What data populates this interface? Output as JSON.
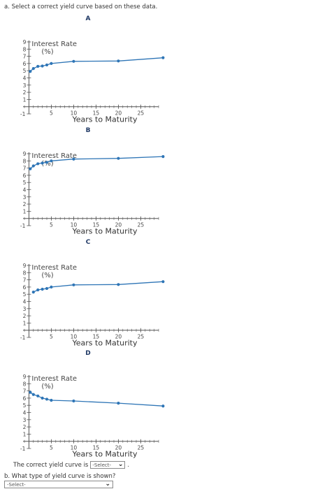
{
  "question_a": "a. Select a correct yield curve based on these data.",
  "question_b": "b. What type of yield curve is shown?",
  "answer_prefix": "The correct yield curve is",
  "answer_suffix": ".",
  "select_a": {
    "selected": "-Select-"
  },
  "select_b": {
    "selected": "-Select-"
  },
  "colors": {
    "series": "#2e75b6",
    "axis": "#555555",
    "title": "#1f3864"
  },
  "chart_data": [
    {
      "type": "line",
      "title": "A",
      "ylabel_line1": "Interest Rate",
      "ylabel_line2": "(%)",
      "xlabel": "Years to Maturity",
      "xlim": [
        -1,
        29
      ],
      "ylim": [
        -1,
        9
      ],
      "x_ticks": [
        5,
        10,
        15,
        20,
        25
      ],
      "y_ticks": [
        1,
        2,
        3,
        4,
        5,
        6,
        7,
        8,
        9
      ],
      "series": [
        {
          "x": [
            0.3,
            1,
            2,
            3,
            4,
            5,
            10,
            20,
            30
          ],
          "y": [
            4.9,
            5.3,
            5.6,
            5.65,
            5.8,
            6.0,
            6.3,
            6.35,
            6.8
          ]
        }
      ]
    },
    {
      "type": "line",
      "title": "B",
      "ylabel_line1": "Interest Rate",
      "ylabel_line2": "(%)",
      "xlabel": "Years to Maturity",
      "xlim": [
        -1,
        29
      ],
      "ylim": [
        -1,
        9
      ],
      "x_ticks": [
        5,
        10,
        15,
        20,
        25
      ],
      "y_ticks": [
        1,
        2,
        3,
        4,
        5,
        6,
        7,
        8,
        9
      ],
      "series": [
        {
          "x": [
            0.3,
            1,
            2,
            3,
            4,
            5,
            10,
            20,
            30
          ],
          "y": [
            6.9,
            7.3,
            7.6,
            7.7,
            7.8,
            8.0,
            8.25,
            8.35,
            8.6
          ]
        }
      ]
    },
    {
      "type": "line",
      "title": "C",
      "ylabel_line1": "Interest Rate",
      "ylabel_line2": "(%)",
      "xlabel": "Years to Maturity",
      "xlim": [
        -1,
        29
      ],
      "ylim": [
        -1,
        9
      ],
      "x_ticks": [
        5,
        10,
        15,
        20,
        25
      ],
      "y_ticks": [
        1,
        2,
        3,
        4,
        5,
        6,
        7,
        8,
        9
      ],
      "series": [
        {
          "x": [
            1,
            2,
            3,
            4,
            5,
            10,
            20,
            30
          ],
          "y": [
            5.3,
            5.6,
            5.7,
            5.8,
            6.0,
            6.3,
            6.35,
            6.75
          ]
        }
      ]
    },
    {
      "type": "line",
      "title": "D",
      "ylabel_line1": "Interest Rate",
      "ylabel_line2": "(%)",
      "xlabel": "Years to Maturity",
      "xlim": [
        -1,
        29
      ],
      "ylim": [
        -1,
        9
      ],
      "x_ticks": [
        5,
        10,
        15,
        20,
        25
      ],
      "y_ticks": [
        1,
        2,
        3,
        4,
        5,
        6,
        7,
        8,
        9
      ],
      "series": [
        {
          "x": [
            0.3,
            1,
            2,
            3,
            4,
            5,
            10,
            20,
            30
          ],
          "y": [
            6.8,
            6.5,
            6.3,
            6.0,
            5.85,
            5.7,
            5.6,
            5.3,
            4.9
          ]
        }
      ]
    }
  ]
}
